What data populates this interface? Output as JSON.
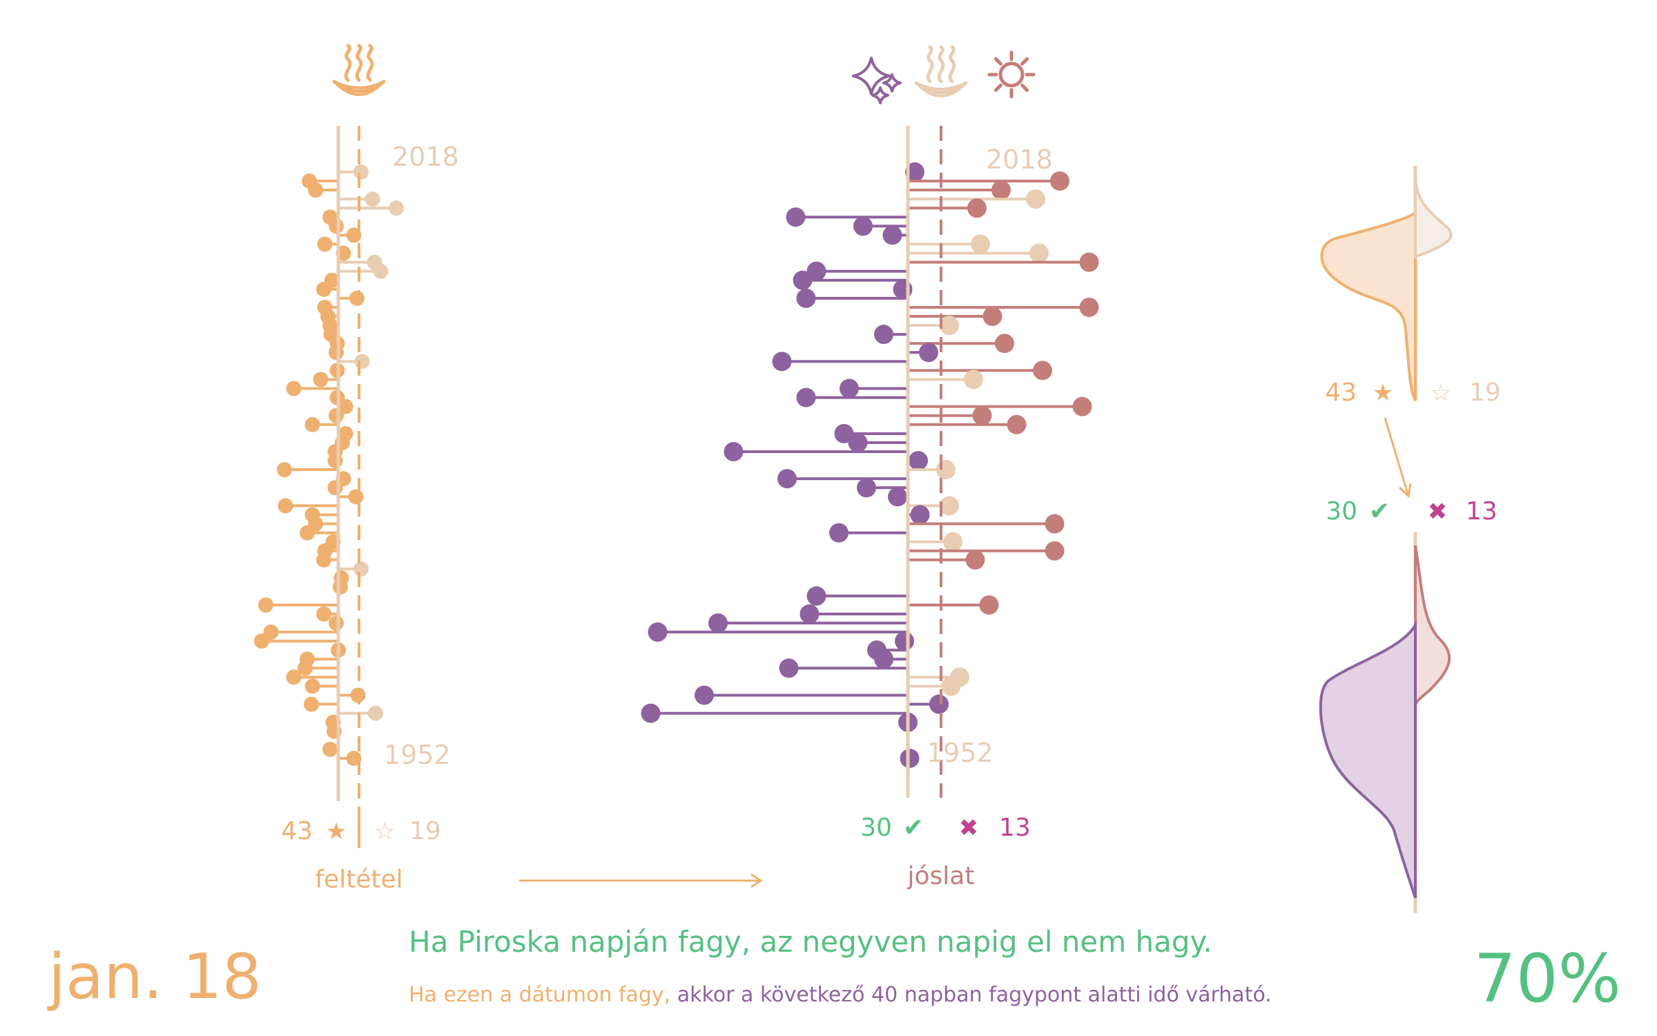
{
  "colors": {
    "orange": "#EFB06F",
    "beige": "#E8CDB3",
    "purple": "#8E629E",
    "rose": "#C47E7A",
    "green": "#55C081",
    "magenta": "#C0428F",
    "light_purple_fill": "#E2D2E4",
    "light_rose_fill": "#F2DEDA",
    "light_orange_fill": "#FAE4CF",
    "light_beige_fill": "#F6EDE6"
  },
  "icons": {
    "condition": "hot-spring-icon",
    "prediction": [
      "sparkle-icon",
      "hot-spring-icon",
      "sun-icon"
    ]
  },
  "condition_panel": {
    "year_top": "2018",
    "year_bottom": "1952",
    "count_yes": "43",
    "star_filled": "★",
    "star_empty": "☆",
    "count_no": "19",
    "label": "feltétel"
  },
  "prediction_panel": {
    "year_top": "2018",
    "year_bottom": "1952",
    "count_correct": "30",
    "check": "✔",
    "cross": "✖",
    "count_wrong": "13",
    "label": "jóslat"
  },
  "side_panel": {
    "count_yes": "43",
    "count_no": "19",
    "star_filled": "★",
    "star_empty": "☆",
    "count_correct": "30",
    "count_wrong": "13",
    "check": "✔",
    "cross": "✖"
  },
  "footer": {
    "date": "jan. 18",
    "saying": "Ha Piroska napján fagy, az negyven napig el nem hagy.",
    "explain_part1": "Ha ezen a dátumon fagy,",
    "explain_part2": " akkor a következő 40 napban fagypont alatti idő várható.",
    "percent": "70%"
  },
  "chart_data": {
    "type": "lollipop",
    "year_range": [
      1952,
      2018
    ],
    "condition_series": {
      "name": "feltétel",
      "value_range": [
        -7,
        3
      ],
      "points": [
        {
          "year": 2017,
          "v": 2.2
        },
        {
          "year": 2016,
          "v": -2.8
        },
        {
          "year": 2015,
          "v": -2.2
        },
        {
          "year": 2014,
          "v": 3.3
        },
        {
          "year": 2013,
          "v": 5.6
        },
        {
          "year": 2012,
          "v": -0.8
        },
        {
          "year": 2011,
          "v": -0.2
        },
        {
          "year": 2010,
          "v": 1.5
        },
        {
          "year": 2009,
          "v": -1.3
        },
        {
          "year": 2008,
          "v": 0.5
        },
        {
          "year": 2007,
          "v": 3.5
        },
        {
          "year": 2006,
          "v": 4.1
        },
        {
          "year": 2005,
          "v": -0.6
        },
        {
          "year": 2004,
          "v": -1.4
        },
        {
          "year": 2003,
          "v": 1.8
        },
        {
          "year": 2002,
          "v": -1.3
        },
        {
          "year": 2001,
          "v": -1.0
        },
        {
          "year": 2000,
          "v": -0.8
        },
        {
          "year": 1999,
          "v": -0.7
        },
        {
          "year": 1998,
          "v": -0.1
        },
        {
          "year": 1997,
          "v": -0.2
        },
        {
          "year": 1996,
          "v": 2.3
        },
        {
          "year": 1995,
          "v": -0.1
        },
        {
          "year": 1994,
          "v": -1.7
        },
        {
          "year": 1993,
          "v": -4.3
        },
        {
          "year": 1992,
          "v": -0.1
        },
        {
          "year": 1991,
          "v": 0.7
        },
        {
          "year": 1990,
          "v": -0.2
        },
        {
          "year": 1989,
          "v": -2.5
        },
        {
          "year": 1988,
          "v": 0.7
        },
        {
          "year": 1987,
          "v": 0.4
        },
        {
          "year": 1986,
          "v": -0.3
        },
        {
          "year": 1985,
          "v": -0.3
        },
        {
          "year": 1984,
          "v": -5.2
        },
        {
          "year": 1983,
          "v": 0.5
        },
        {
          "year": 1982,
          "v": -0.3
        },
        {
          "year": 1981,
          "v": 1.7
        },
        {
          "year": 1980,
          "v": -5.1
        },
        {
          "year": 1979,
          "v": -2.5
        },
        {
          "year": 1978,
          "v": -2.2
        },
        {
          "year": 1977,
          "v": -3.0
        },
        {
          "year": 1976,
          "v": -0.5
        },
        {
          "year": 1975,
          "v": -1.3
        },
        {
          "year": 1974,
          "v": -1.4
        },
        {
          "year": 1973,
          "v": 2.2
        },
        {
          "year": 1972,
          "v": 0.3
        },
        {
          "year": 1971,
          "v": 0.2
        },
        {
          "year": 1969,
          "v": -7.0
        },
        {
          "year": 1968,
          "v": -1.4
        },
        {
          "year": 1967,
          "v": -0.2
        },
        {
          "year": 1966,
          "v": -6.5
        },
        {
          "year": 1965,
          "v": -7.4
        },
        {
          "year": 1964,
          "v": -0.0
        },
        {
          "year": 1963,
          "v": -3.0
        },
        {
          "year": 1962,
          "v": -3.2
        },
        {
          "year": 1961,
          "v": -4.3
        },
        {
          "year": 1960,
          "v": -2.5
        },
        {
          "year": 1959,
          "v": 1.9
        },
        {
          "year": 1958,
          "v": -2.6
        },
        {
          "year": 1957,
          "v": 3.6
        },
        {
          "year": 1956,
          "v": -0.5
        },
        {
          "year": 1955,
          "v": -0.4
        },
        {
          "year": 1953,
          "v": -0.8
        },
        {
          "year": 1952,
          "v": 1.5
        }
      ]
    },
    "prediction_series": {
      "name": "jóslat",
      "value_range": [
        -10,
        7
      ],
      "points": [
        {
          "year": 2017,
          "v": 0.4
        },
        {
          "year": 2016,
          "v": 8.8
        },
        {
          "year": 2015,
          "v": 5.4
        },
        {
          "year": 2014,
          "v": 7.4
        },
        {
          "year": 2013,
          "v": 4.0
        },
        {
          "year": 2012,
          "v": -6.5
        },
        {
          "year": 2011,
          "v": -2.6
        },
        {
          "year": 2010,
          "v": -0.9
        },
        {
          "year": 2009,
          "v": 4.2
        },
        {
          "year": 2008,
          "v": 7.6
        },
        {
          "year": 2007,
          "v": 10.5
        },
        {
          "year": 2006,
          "v": -5.3
        },
        {
          "year": 2005,
          "v": -6.1
        },
        {
          "year": 2004,
          "v": -0.3
        },
        {
          "year": 2003,
          "v": -5.9
        },
        {
          "year": 2002,
          "v": 10.5
        },
        {
          "year": 2001,
          "v": 4.9
        },
        {
          "year": 2000,
          "v": 2.4
        },
        {
          "year": 1999,
          "v": -1.4
        },
        {
          "year": 1998,
          "v": 5.6
        },
        {
          "year": 1997,
          "v": 1.2
        },
        {
          "year": 1996,
          "v": -7.3
        },
        {
          "year": 1995,
          "v": 7.8
        },
        {
          "year": 1994,
          "v": 3.8
        },
        {
          "year": 1993,
          "v": -3.4
        },
        {
          "year": 1992,
          "v": -5.9
        },
        {
          "year": 1991,
          "v": 10.1
        },
        {
          "year": 1990,
          "v": 4.3
        },
        {
          "year": 1989,
          "v": 6.3
        },
        {
          "year": 1988,
          "v": -3.7
        },
        {
          "year": 1987,
          "v": -2.9
        },
        {
          "year": 1986,
          "v": -10.1
        },
        {
          "year": 1985,
          "v": 0.6
        },
        {
          "year": 1984,
          "v": 2.2
        },
        {
          "year": 1983,
          "v": -7.0
        },
        {
          "year": 1982,
          "v": -2.4
        },
        {
          "year": 1981,
          "v": -0.6
        },
        {
          "year": 1980,
          "v": 2.4
        },
        {
          "year": 1979,
          "v": 0.7
        },
        {
          "year": 1978,
          "v": 8.5
        },
        {
          "year": 1977,
          "v": -4.0
        },
        {
          "year": 1976,
          "v": 2.6
        },
        {
          "year": 1975,
          "v": 8.5
        },
        {
          "year": 1974,
          "v": 3.9
        },
        {
          "year": 1970,
          "v": -5.3
        },
        {
          "year": 1969,
          "v": 4.7
        },
        {
          "year": 1968,
          "v": -5.7
        },
        {
          "year": 1967,
          "v": -11.0
        },
        {
          "year": 1966,
          "v": -14.5
        },
        {
          "year": 1965,
          "v": -0.2
        },
        {
          "year": 1964,
          "v": -1.8
        },
        {
          "year": 1963,
          "v": -1.4
        },
        {
          "year": 1962,
          "v": -6.9
        },
        {
          "year": 1961,
          "v": 3.0
        },
        {
          "year": 1960,
          "v": 2.5
        },
        {
          "year": 1959,
          "v": -11.8
        },
        {
          "year": 1958,
          "v": 1.8
        },
        {
          "year": 1957,
          "v": -14.9
        },
        {
          "year": 1956,
          "v": 0.0
        },
        {
          "year": 1952,
          "v": 0.1
        }
      ]
    },
    "summary": {
      "condition_met": 43,
      "condition_not_met": 19,
      "prediction_correct": 30,
      "prediction_wrong": 13,
      "accuracy_percent": 70
    }
  }
}
